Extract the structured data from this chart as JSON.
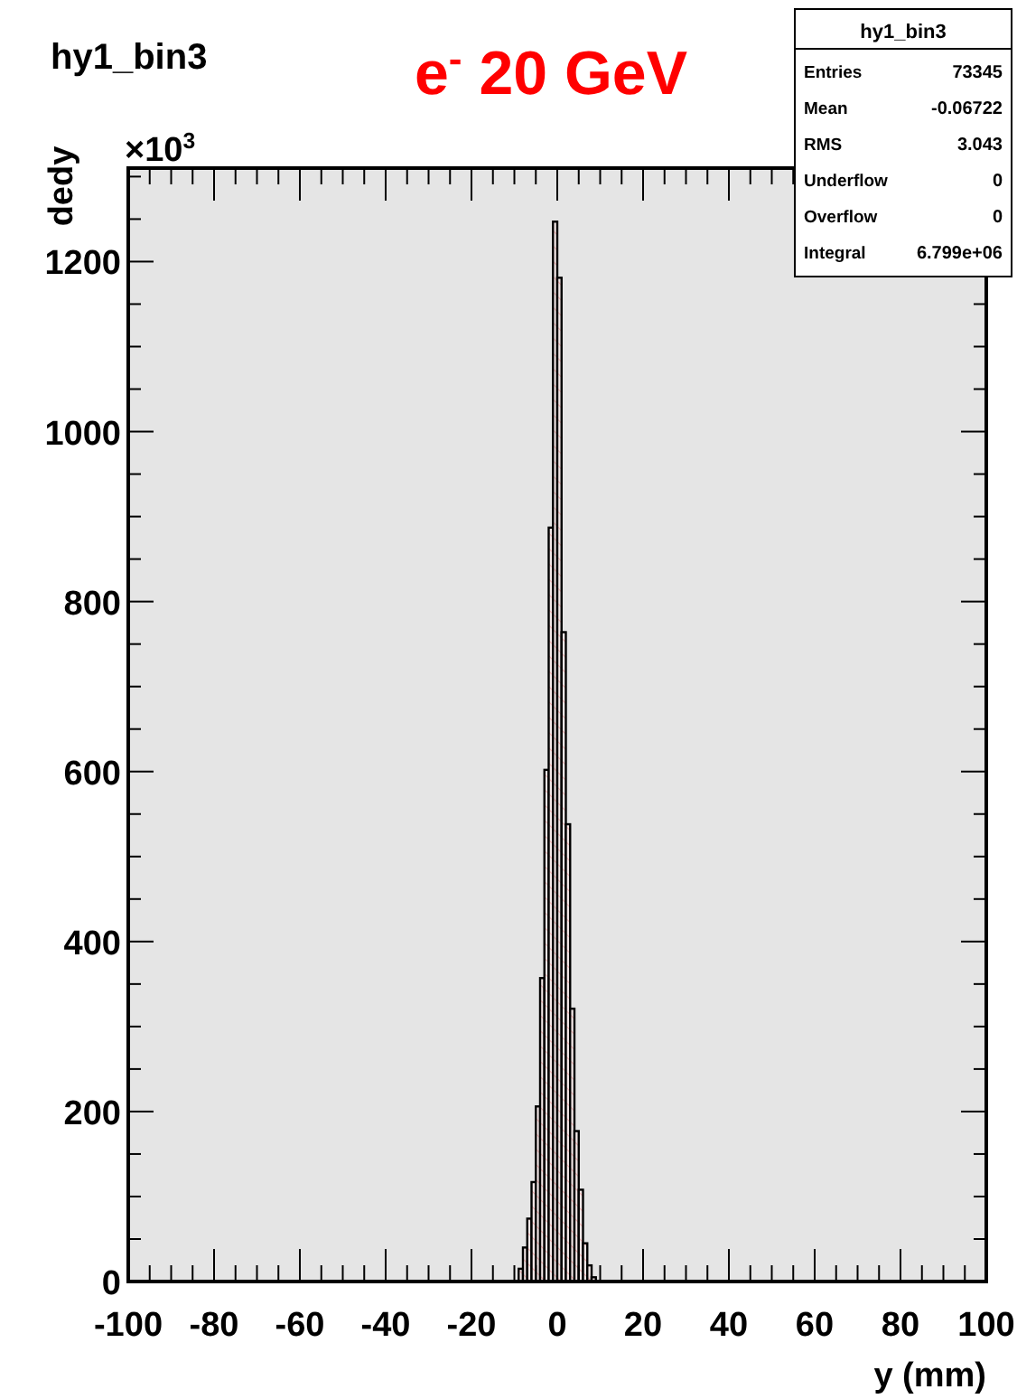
{
  "chart_data": {
    "type": "histogram",
    "title": "hy1_bin3",
    "subtitle": "e$^{-}$ 20 GeV",
    "xlabel": "y (mm)",
    "ylabel": "dedy",
    "bins": [
      -9,
      -8,
      -7,
      -6,
      -5,
      -4,
      -3,
      -2,
      -1,
      0,
      1,
      2,
      3,
      4,
      5,
      6,
      7,
      8,
      9
    ],
    "values": [
      15,
      40,
      74,
      117,
      206,
      357,
      602,
      887,
      1247,
      1181,
      764,
      538,
      321,
      177,
      108,
      45,
      19,
      5
    ],
    "color": "#000000",
    "xlim": [
      -100,
      100
    ],
    "xticks": [
      -100,
      {
        "value": -95,
        "label": null
      },
      {
        "value": -90,
        "label": null
      },
      {
        "value": -85,
        "label": null
      },
      -80,
      {
        "value": -75,
        "label": null
      },
      {
        "value": -70,
        "label": null
      },
      {
        "value": -65,
        "label": null
      },
      -60,
      {
        "value": -55,
        "label": null
      },
      {
        "value": -50,
        "label": null
      },
      {
        "value": -45,
        "label": null
      },
      -40,
      {
        "value": -35,
        "label": null
      },
      {
        "value": -30,
        "label": null
      },
      {
        "value": -25,
        "label": null
      },
      -20,
      {
        "value": -15,
        "label": null
      },
      {
        "value": -10,
        "label": null
      },
      {
        "value": -5,
        "label": null
      },
      0,
      {
        "value": 5,
        "label": null
      },
      {
        "value": 10,
        "label": null
      },
      {
        "value": 15,
        "label": null
      },
      20,
      {
        "value": 25,
        "label": null
      },
      {
        "value": 30,
        "label": null
      },
      {
        "value": 35,
        "label": null
      },
      40,
      {
        "value": 45,
        "label": null
      },
      {
        "value": 50,
        "label": null
      },
      {
        "value": 55,
        "label": null
      },
      60,
      {
        "value": 65,
        "label": null
      },
      {
        "value": 70,
        "label": null
      },
      {
        "value": 75,
        "label": null
      },
      80,
      {
        "value": 85,
        "label": null
      },
      {
        "value": 90,
        "label": null
      },
      {
        "value": 95,
        "label": null
      },
      100
    ],
    "ylim": [
      0,
      1310
    ],
    "yticks": [
      0,
      {
        "value": 50,
        "label": null
      },
      {
        "value": 100,
        "label": null
      },
      {
        "value": 150,
        "label": null
      },
      200,
      {
        "value": 250,
        "label": null
      },
      {
        "value": 300,
        "label": null
      },
      {
        "value": 350,
        "label": null
      },
      400,
      {
        "value": 450,
        "label": null
      },
      {
        "value": 500,
        "label": null
      },
      {
        "value": 550,
        "label": null
      },
      600,
      {
        "value": 650,
        "label": null
      },
      {
        "value": 700,
        "label": null
      },
      {
        "value": 750,
        "label": null
      },
      800,
      {
        "value": 850,
        "label": null
      },
      {
        "value": 900,
        "label": null
      },
      {
        "value": 950,
        "label": null
      },
      1000,
      {
        "value": 1050,
        "label": null
      },
      {
        "value": 1100,
        "label": null
      },
      {
        "value": 1150,
        "label": null
      },
      1200,
      {
        "value": 1250,
        "label": null
      },
      {
        "value": 1300,
        "label": null
      }
    ],
    "annotations": [
      "×10$^{3}$",
      "hy1_bin3",
      "Entries",
      "73345",
      "Mean",
      "-0.06722",
      "RMS",
      "3.043",
      "Underflow",
      "0",
      "Overflow",
      "0",
      "Integral",
      "6.799e+06"
    ]
  }
}
